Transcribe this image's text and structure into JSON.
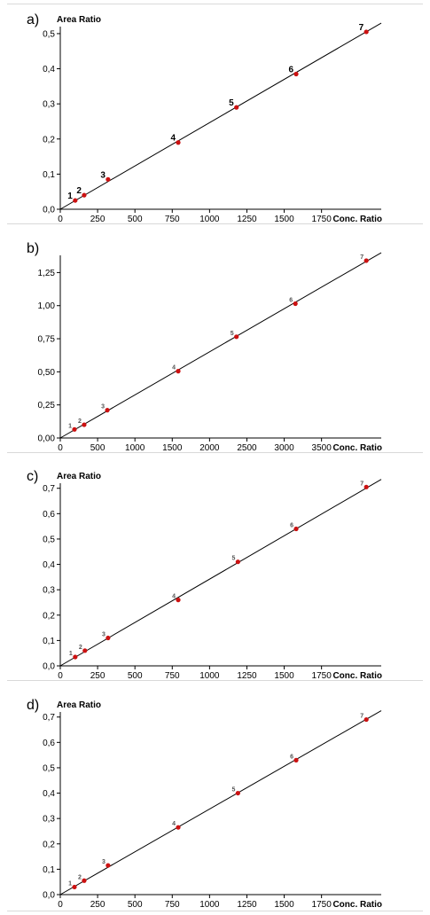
{
  "chart_data": [
    {
      "panel": "a)",
      "type": "scatter",
      "ylabel": "Area Ratio",
      "xlabel": "Conc. Ratio",
      "xlim": [
        0,
        2150
      ],
      "ylim": [
        0,
        0.52
      ],
      "xticks": [
        "0",
        "250",
        "500",
        "750",
        "1000",
        "1250",
        "1500",
        "1750"
      ],
      "xtick_values": [
        0,
        250,
        500,
        750,
        1000,
        1250,
        1500,
        1750
      ],
      "yticks": [
        "0,0",
        "0,1",
        "0,2",
        "0,3",
        "0,4",
        "0,5"
      ],
      "ytick_values": [
        0,
        0.1,
        0.2,
        0.3,
        0.4,
        0.5
      ],
      "points": [
        {
          "label": "1",
          "x": 100,
          "y": 0.025
        },
        {
          "label": "2",
          "x": 160,
          "y": 0.04
        },
        {
          "label": "3",
          "x": 320,
          "y": 0.085
        },
        {
          "label": "4",
          "x": 790,
          "y": 0.19
        },
        {
          "label": "5",
          "x": 1180,
          "y": 0.29
        },
        {
          "label": "6",
          "x": 1580,
          "y": 0.385
        },
        {
          "label": "7",
          "x": 2050,
          "y": 0.505
        }
      ],
      "fit": {
        "x": [
          0,
          2150
        ],
        "y": [
          0.0,
          0.53
        ]
      },
      "label_color": "#000000",
      "label_size": 10
    },
    {
      "panel": "b)",
      "type": "scatter",
      "ylabel": "",
      "xlabel": "Conc. Ratio",
      "xlim": [
        0,
        4300
      ],
      "ylim": [
        0,
        1.38
      ],
      "xticks": [
        "0",
        "500",
        "1000",
        "1500",
        "2000",
        "2500",
        "3000",
        "3500"
      ],
      "xtick_values": [
        0,
        500,
        1000,
        1500,
        2000,
        2500,
        3000,
        3500
      ],
      "yticks": [
        "0,00",
        "0,25",
        "0,50",
        "0,75",
        "1,00",
        "1,25"
      ],
      "ytick_values": [
        0,
        0.25,
        0.5,
        0.75,
        1.0,
        1.25
      ],
      "points": [
        {
          "label": "1",
          "x": 190,
          "y": 0.065
        },
        {
          "label": "2",
          "x": 320,
          "y": 0.1
        },
        {
          "label": "3",
          "x": 630,
          "y": 0.21
        },
        {
          "label": "4",
          "x": 1580,
          "y": 0.505
        },
        {
          "label": "5",
          "x": 2360,
          "y": 0.765
        },
        {
          "label": "6",
          "x": 3150,
          "y": 1.015
        },
        {
          "label": "7",
          "x": 4100,
          "y": 1.34
        }
      ],
      "fit": {
        "x": [
          0,
          4300
        ],
        "y": [
          0.0,
          1.4
        ]
      },
      "label_color": "#555555",
      "label_size": 7
    },
    {
      "panel": "c)",
      "type": "scatter",
      "ylabel": "Area Ratio",
      "xlabel": "Conc. Ratio",
      "xlim": [
        0,
        2150
      ],
      "ylim": [
        0,
        0.72
      ],
      "xticks": [
        "0",
        "250",
        "500",
        "750",
        "1000",
        "1250",
        "1500",
        "1750"
      ],
      "xtick_values": [
        0,
        250,
        500,
        750,
        1000,
        1250,
        1500,
        1750
      ],
      "yticks": [
        "0,0",
        "0,1",
        "0,2",
        "0,3",
        "0,4",
        "0,5",
        "0,6",
        "0,7"
      ],
      "ytick_values": [
        0,
        0.1,
        0.2,
        0.3,
        0.4,
        0.5,
        0.6,
        0.7
      ],
      "points": [
        {
          "label": "1",
          "x": 100,
          "y": 0.035
        },
        {
          "label": "2",
          "x": 165,
          "y": 0.06
        },
        {
          "label": "3",
          "x": 320,
          "y": 0.11
        },
        {
          "label": "4",
          "x": 790,
          "y": 0.26
        },
        {
          "label": "5",
          "x": 1190,
          "y": 0.41
        },
        {
          "label": "6",
          "x": 1580,
          "y": 0.54
        },
        {
          "label": "7",
          "x": 2050,
          "y": 0.705
        }
      ],
      "fit": {
        "x": [
          0,
          2150
        ],
        "y": [
          0.0,
          0.735
        ]
      },
      "label_color": "#555555",
      "label_size": 7
    },
    {
      "panel": "d)",
      "type": "scatter",
      "ylabel": "Area Ratio",
      "xlabel": "Conc. Ratio",
      "xlim": [
        0,
        2150
      ],
      "ylim": [
        0,
        0.72
      ],
      "xticks": [
        "0",
        "250",
        "500",
        "750",
        "1000",
        "1250",
        "1500",
        "1750"
      ],
      "xtick_values": [
        0,
        250,
        500,
        750,
        1000,
        1250,
        1500,
        1750
      ],
      "yticks": [
        "0,0",
        "0,1",
        "0,2",
        "0,3",
        "0,4",
        "0,5",
        "0,6",
        "0,7"
      ],
      "ytick_values": [
        0,
        0.1,
        0.2,
        0.3,
        0.4,
        0.5,
        0.6,
        0.7
      ],
      "points": [
        {
          "label": "1",
          "x": 95,
          "y": 0.03
        },
        {
          "label": "2",
          "x": 160,
          "y": 0.055
        },
        {
          "label": "3",
          "x": 320,
          "y": 0.115
        },
        {
          "label": "4",
          "x": 790,
          "y": 0.265
        },
        {
          "label": "5",
          "x": 1190,
          "y": 0.4
        },
        {
          "label": "6",
          "x": 1580,
          "y": 0.53
        },
        {
          "label": "7",
          "x": 2050,
          "y": 0.69
        }
      ],
      "fit": {
        "x": [
          0,
          2150
        ],
        "y": [
          0.0,
          0.725
        ]
      },
      "label_color": "#555555",
      "label_size": 7
    }
  ],
  "colors": {
    "point": "#cc1111",
    "axis": "#000000",
    "line": "#000000"
  }
}
